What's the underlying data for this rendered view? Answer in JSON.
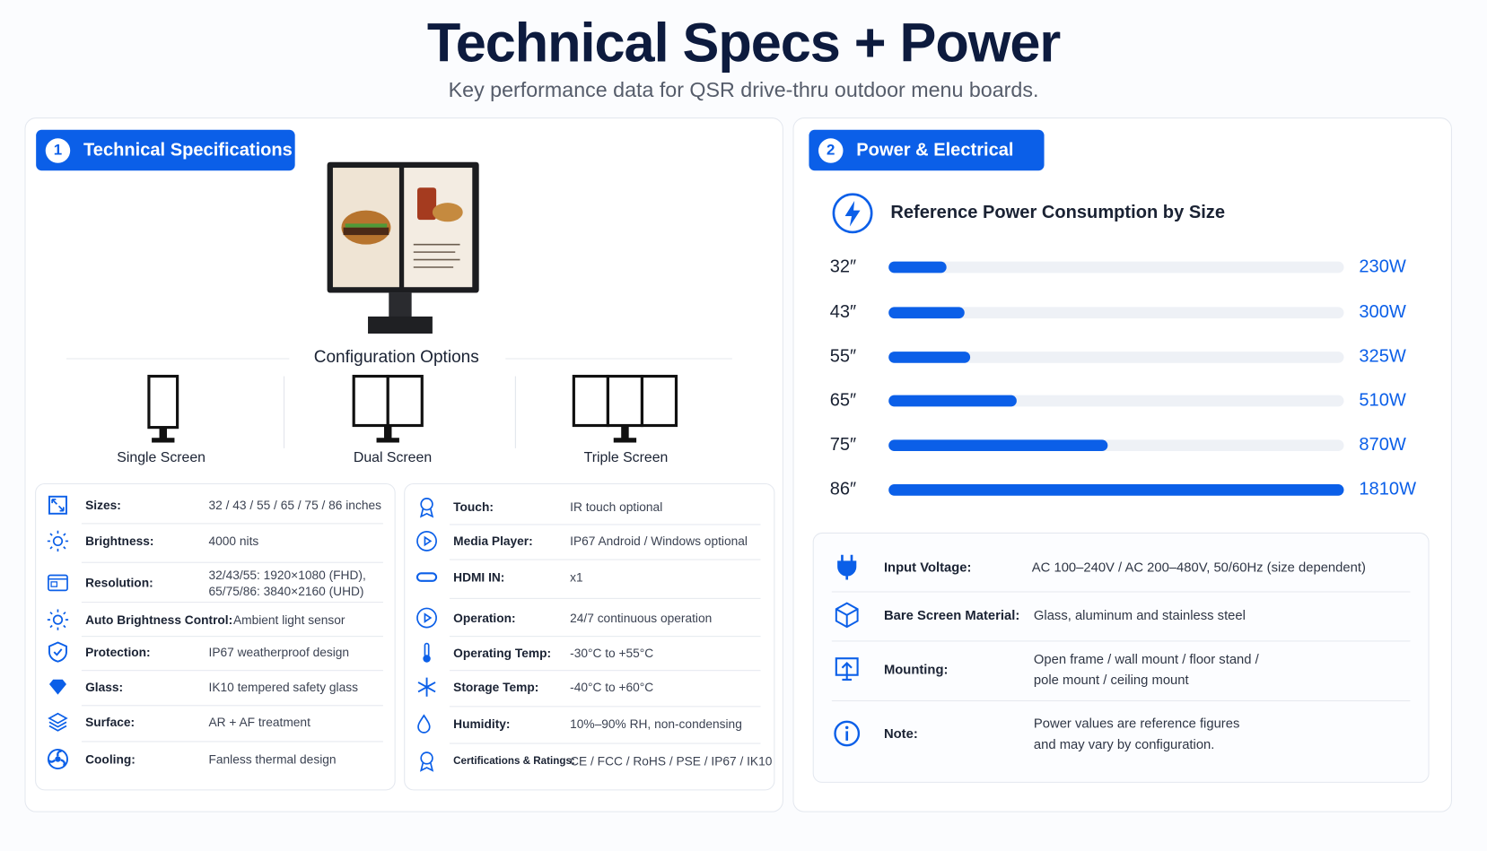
{
  "header": {
    "title": "Technical Specs + Power",
    "subtitle": "Key performance data for QSR drive-thru outdoor menu boards."
  },
  "panels": [
    {
      "number": 1,
      "title": "Technical Specifications"
    },
    {
      "number": 2,
      "title": "Power & Electrical"
    }
  ],
  "configuration": {
    "title": "Configuration Options",
    "options": [
      "Single Screen",
      "Dual Screen",
      "Triple Screen"
    ]
  },
  "specs_left": [
    {
      "label": "Sizes:",
      "value": [
        "32 / 43 / 55 / 65 / 75 / 86 inches"
      ]
    },
    {
      "label": "Brightness:",
      "value": [
        "4000 nits"
      ]
    },
    {
      "label": "Resolution:",
      "value": [
        "32/43/55: 1920×1080 (FHD),",
        "65/75/86: 3840×2160 (UHD)"
      ]
    },
    {
      "label": "Auto Brightness Control:",
      "value": [
        "Ambient light sensor"
      ]
    },
    {
      "label": "Protection:",
      "value": [
        "IP67 weatherproof design"
      ]
    },
    {
      "label": "Glass:",
      "value": [
        "IK10 tempered safety glass"
      ]
    },
    {
      "label": "Surface:",
      "value": [
        "AR + AF treatment"
      ]
    },
    {
      "label": "Cooling:",
      "value": [
        "Fanless thermal design"
      ]
    }
  ],
  "specs_right": [
    {
      "label": "Touch:",
      "value": [
        "IR touch optional"
      ]
    },
    {
      "label": "Media Player:",
      "value": [
        "IP67 Android / Windows optional"
      ]
    },
    {
      "label": "HDMI IN:",
      "value": [
        "x1"
      ]
    },
    {
      "label": "Operation:",
      "value": [
        "24/7 continuous operation"
      ]
    },
    {
      "label": "Operating Temp:",
      "value": [
        "-30°C to +55°C"
      ]
    },
    {
      "label": "Storage Temp:",
      "value": [
        "-40°C to +60°C"
      ]
    },
    {
      "label": "Humidity:",
      "value": [
        "10%–90% RH, non-condensing"
      ]
    },
    {
      "label": "Certifications & Ratings:",
      "value": [
        "CE / FCC / RoHS / PSE / IP67 / IK10"
      ]
    }
  ],
  "chart_data": {
    "type": "bar",
    "orientation": "horizontal",
    "title": "Reference Power Consumption by Size",
    "categories": [
      "32″",
      "43″",
      "55″",
      "65″",
      "75″",
      "86″"
    ],
    "values": [
      230,
      300,
      325,
      510,
      870,
      1810
    ],
    "value_labels": [
      "230W",
      "300W",
      "325W",
      "510W",
      "870W",
      "1810W"
    ],
    "color": "#0b5fe8"
  },
  "electrical": [
    {
      "label": "Input Voltage:",
      "value": [
        "AC 100–240V / AC 200–480V, 50/60Hz (size dependent)"
      ]
    },
    {
      "label": "Bare Screen Material:",
      "value": [
        "Glass, aluminum and stainless steel"
      ]
    },
    {
      "label": "Mounting:",
      "value": [
        "Open frame / wall mount / floor stand /",
        "pole mount / ceiling mount"
      ]
    },
    {
      "label": "Note:",
      "value": [
        "Power values are reference figures",
        "and may vary by configuration."
      ]
    }
  ]
}
